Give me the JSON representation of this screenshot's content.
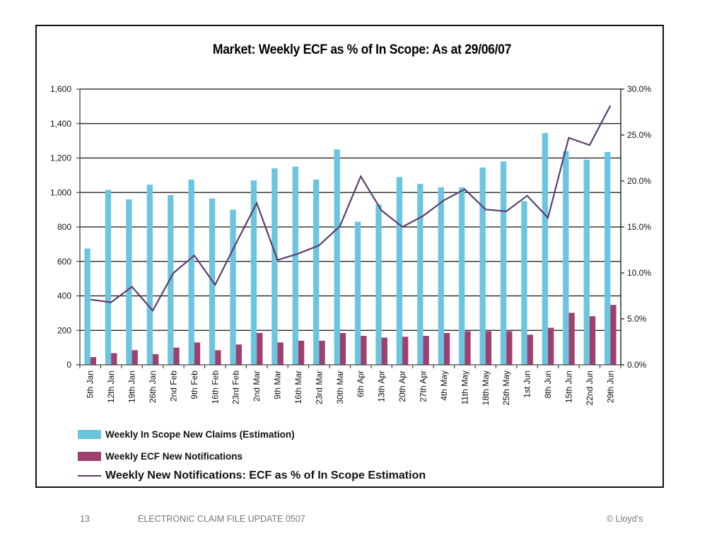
{
  "chart_data": {
    "type": "bar",
    "title": "Market: Weekly ECF as % of In Scope: As at 29/06/07",
    "categories": [
      "5th Jan",
      "12th Jan",
      "19th Jan",
      "26th Jan",
      "2nd Feb",
      "9th Feb",
      "16th Feb",
      "23rd Feb",
      "2nd Mar",
      "9th Mar",
      "16th Mar",
      "23rd Mar",
      "30th Mar",
      "6th Apr",
      "13th Apr",
      "20th Apr",
      "27th Apr",
      "4th May",
      "11th May",
      "18th May",
      "25th May",
      "1st Jun",
      "8th Jun",
      "15th Jun",
      "22nd Jun",
      "29th Jun"
    ],
    "series": [
      {
        "name": "Weekly In Scope New Claims (Estimation)",
        "type": "bar",
        "axis": "left",
        "color": "#6cc5df",
        "values": [
          675,
          1015,
          960,
          1045,
          985,
          1075,
          965,
          900,
          1070,
          1140,
          1150,
          1075,
          1250,
          830,
          930,
          1090,
          1050,
          1030,
          1030,
          1145,
          1180,
          950,
          1345,
          1240,
          1190,
          1235
        ]
      },
      {
        "name": "Weekly ECF New Notifications",
        "type": "bar",
        "axis": "left",
        "color": "#9e406f",
        "values": [
          45,
          68,
          85,
          62,
          100,
          130,
          85,
          118,
          185,
          130,
          140,
          140,
          185,
          168,
          158,
          163,
          168,
          185,
          195,
          195,
          195,
          175,
          215,
          302,
          282,
          348
        ]
      },
      {
        "name": "Weekly New Notifications: ECF as % of In Scope Estimation",
        "type": "line",
        "axis": "right",
        "color": "#5b3f6e",
        "values": [
          7.1,
          6.8,
          8.5,
          5.9,
          10.0,
          11.9,
          8.7,
          13.2,
          17.6,
          11.4,
          12.1,
          13.0,
          15.1,
          20.5,
          16.8,
          15.0,
          16.2,
          17.9,
          19.1,
          16.9,
          16.7,
          18.4,
          16.0,
          24.7,
          23.9,
          28.2
        ]
      }
    ],
    "y_left": {
      "range": [
        0,
        1600
      ],
      "ticks": [
        0,
        200,
        400,
        600,
        800,
        1000,
        1200,
        1400,
        1600
      ],
      "tick_labels": [
        "0",
        "200",
        "400",
        "600",
        "800",
        "1,000",
        "1,200",
        "1,400",
        "1,600"
      ]
    },
    "y_right": {
      "range": [
        0,
        30
      ],
      "ticks": [
        0,
        5,
        10,
        15,
        20,
        25,
        30
      ],
      "tick_labels": [
        "0.0%",
        "5.0%",
        "10.0%",
        "15.0%",
        "20.0%",
        "25.0%",
        "30.0%"
      ]
    },
    "xlabel": "",
    "ylabel": "",
    "grid": true,
    "legend_position": "bottom"
  },
  "legend": [
    {
      "label": "Weekly In Scope New Claims (Estimation)",
      "color": "#6cc5df",
      "kind": "bar"
    },
    {
      "label": "Weekly ECF New Notifications",
      "color": "#9e406f",
      "kind": "bar"
    },
    {
      "label": "Weekly New Notifications: ECF as % of In Scope Estimation",
      "color": "#5b3f6e",
      "kind": "line"
    }
  ],
  "footer": {
    "page_number": "13",
    "document_title": "ELECTRONIC CLAIM FILE UPDATE  0507",
    "copyright": "© Lloyd’s"
  }
}
